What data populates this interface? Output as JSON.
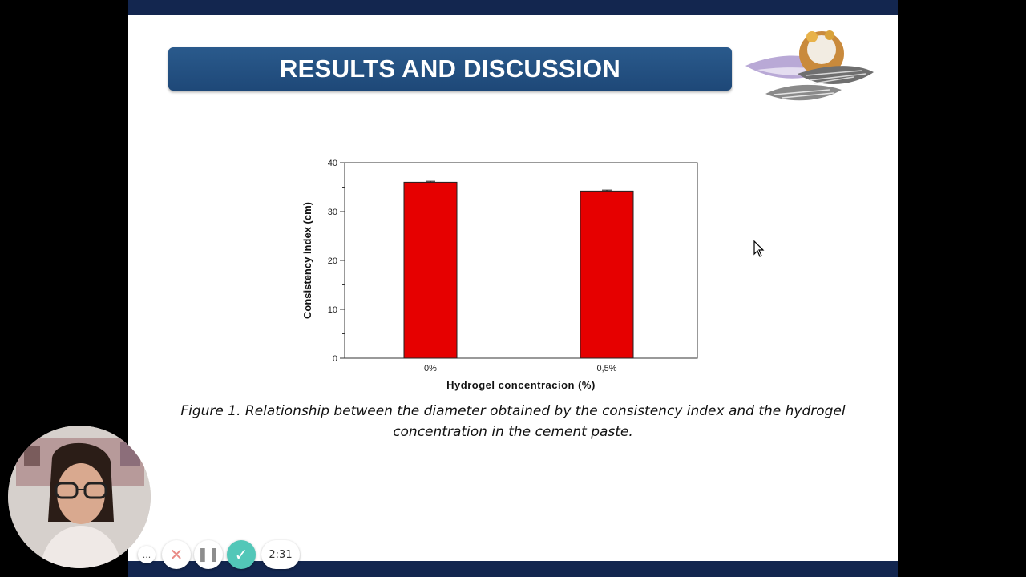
{
  "slide": {
    "title": "RESULTS AND DISCUSSION",
    "caption_line1": "Figure 1. Relationship between the diameter obtained by the consistency index and the hydrogel",
    "caption_line2": "concentration in the cement paste."
  },
  "chart_data": {
    "type": "bar",
    "title": "",
    "xlabel": "Hydrogel concentracion (%)",
    "ylabel": "Consistency index (cm)",
    "categories": [
      "0%",
      "0,5%"
    ],
    "values": [
      36,
      34.2
    ],
    "error": [
      0.2,
      0.2
    ],
    "ylim": [
      0,
      40
    ],
    "yticks": [
      "0",
      "10",
      "20",
      "30",
      "40"
    ],
    "bar_color": "#e60000",
    "grid": false
  },
  "recorder": {
    "more_icon": "...",
    "timer": "2:31",
    "done_color": "#52c7b8"
  }
}
